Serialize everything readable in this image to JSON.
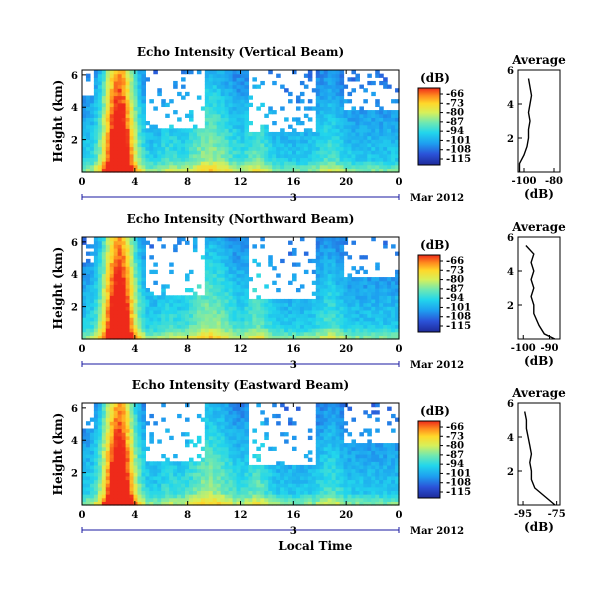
{
  "chart_data": [
    {
      "type": "heatmap",
      "title": "Echo Intensity (Vertical Beam)",
      "ylabel": "Height (km)",
      "x_ticks": [
        "0",
        "4",
        "8",
        "12",
        "16",
        "20",
        "0"
      ],
      "y_ticks": [
        "6",
        "4",
        "2"
      ],
      "date_day": "3",
      "date_month_year": "Mar 2012",
      "colorbar": {
        "label": "(dB)",
        "ticks": [
          "-66",
          "-73",
          "-80",
          "-87",
          "-94",
          "-101",
          "-108",
          "-115"
        ]
      },
      "profile": {
        "title": "Average",
        "xlabel": "(dB)",
        "x_ticks": [
          "-100",
          "-80"
        ],
        "y_ticks": [
          "6",
          "4",
          "2"
        ],
        "xlim": [
          -104,
          -76
        ],
        "ylim": [
          0,
          6
        ],
        "points": [
          [
            -103,
            0.0
          ],
          [
            -103,
            0.5
          ],
          [
            -100,
            1.0
          ],
          [
            -98,
            1.5
          ],
          [
            -97,
            2.0
          ],
          [
            -97,
            2.5
          ],
          [
            -96,
            3.0
          ],
          [
            -97,
            3.5
          ],
          [
            -96,
            4.0
          ],
          [
            -95,
            4.5
          ],
          [
            -96,
            5.0
          ],
          [
            -97,
            5.5
          ]
        ]
      }
    },
    {
      "type": "heatmap",
      "title": "Echo Intensity (Northward Beam)",
      "ylabel": "Height (km)",
      "x_ticks": [
        "0",
        "4",
        "8",
        "12",
        "16",
        "20",
        "0"
      ],
      "y_ticks": [
        "6",
        "4",
        "2"
      ],
      "date_day": "3",
      "date_month_year": "Mar 2012",
      "colorbar": {
        "label": "(dB)",
        "ticks": [
          "-66",
          "-73",
          "-80",
          "-87",
          "-94",
          "-101",
          "-108",
          "-115"
        ]
      },
      "profile": {
        "title": "Average",
        "xlabel": "(dB)",
        "x_ticks": [
          "-100",
          "-90"
        ],
        "y_ticks": [
          "6",
          "4",
          "2"
        ],
        "xlim": [
          -102,
          -86
        ],
        "ylim": [
          0,
          6
        ],
        "points": [
          [
            -88,
            0.0
          ],
          [
            -92,
            0.3
          ],
          [
            -94,
            0.8
          ],
          [
            -96,
            1.5
          ],
          [
            -96,
            2.0
          ],
          [
            -97,
            2.5
          ],
          [
            -96,
            3.0
          ],
          [
            -97,
            3.5
          ],
          [
            -96,
            4.0
          ],
          [
            -97,
            4.5
          ],
          [
            -96,
            5.0
          ],
          [
            -99,
            5.5
          ]
        ]
      }
    },
    {
      "type": "heatmap",
      "title": "Echo Intensity (Eastward Beam)",
      "ylabel": "Height (km)",
      "xlabel": "Local Time",
      "x_ticks": [
        "0",
        "4",
        "8",
        "12",
        "16",
        "20",
        "0"
      ],
      "y_ticks": [
        "6",
        "4",
        "2"
      ],
      "date_day": "3",
      "date_month_year": "Mar 2012",
      "colorbar": {
        "label": "(dB)",
        "ticks": [
          "-66",
          "-73",
          "-80",
          "-87",
          "-94",
          "-101",
          "-108",
          "-115"
        ]
      },
      "profile": {
        "title": "Average",
        "xlabel": "(dB)",
        "x_ticks": [
          "-95",
          "-75"
        ],
        "y_ticks": [
          "6",
          "4",
          "2"
        ],
        "xlim": [
          -98,
          -73
        ],
        "ylim": [
          0,
          6
        ],
        "points": [
          [
            -76,
            0.0
          ],
          [
            -82,
            0.5
          ],
          [
            -88,
            1.0
          ],
          [
            -90,
            1.5
          ],
          [
            -90,
            2.0
          ],
          [
            -91,
            2.5
          ],
          [
            -90,
            3.0
          ],
          [
            -91,
            3.5
          ],
          [
            -92,
            4.0
          ],
          [
            -93,
            4.5
          ],
          [
            -93,
            5.0
          ],
          [
            -94,
            5.5
          ]
        ]
      }
    }
  ]
}
